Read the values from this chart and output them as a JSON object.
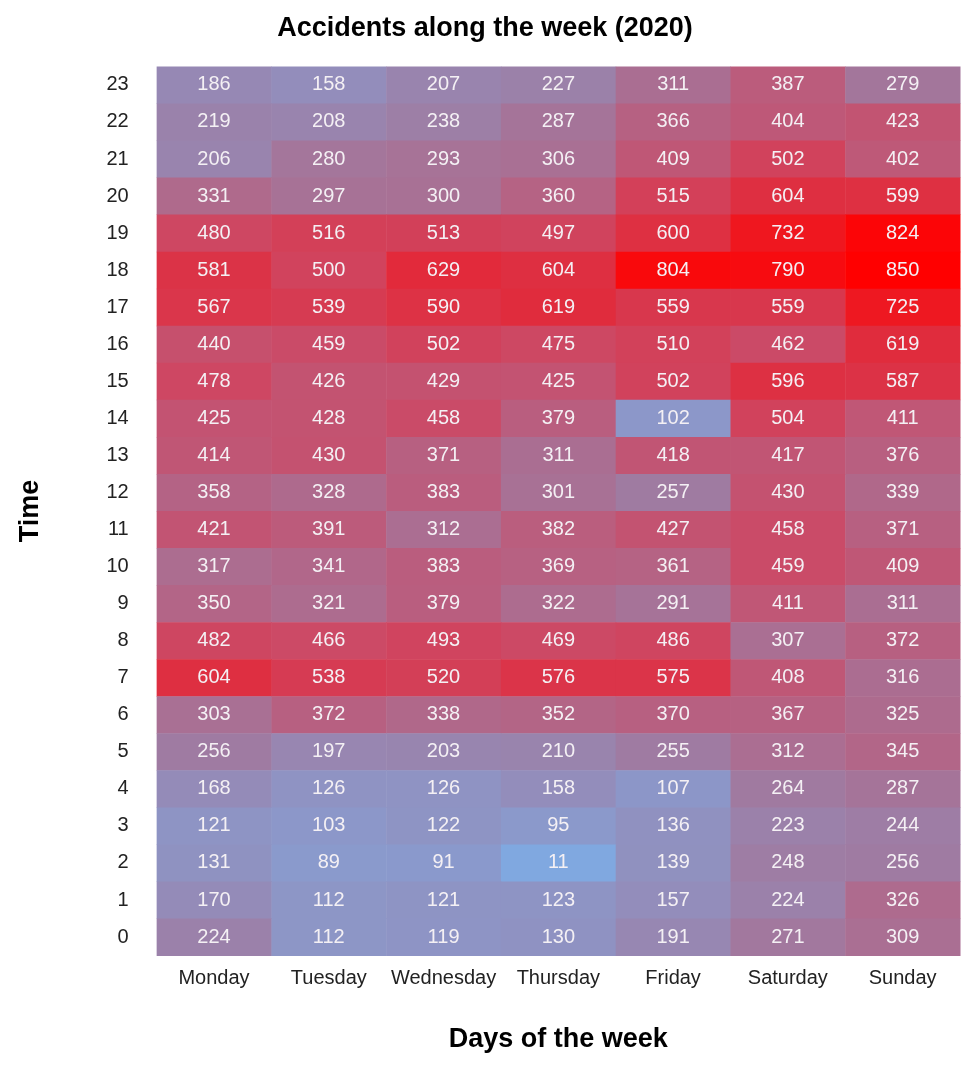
{
  "chart_data": {
    "type": "heatmap",
    "title": "Accidents along the week (2020)",
    "xlabel": "Days of the week",
    "ylabel": "Time",
    "categories": [
      "Monday",
      "Tuesday",
      "Wednesday",
      "Thursday",
      "Friday",
      "Saturday",
      "Sunday"
    ],
    "y_categories": [
      "23",
      "22",
      "21",
      "20",
      "19",
      "18",
      "17",
      "16",
      "15",
      "14",
      "13",
      "12",
      "11",
      "10",
      "9",
      "8",
      "7",
      "6",
      "5",
      "4",
      "3",
      "2",
      "1",
      "0"
    ],
    "cells": [
      [
        186,
        158,
        207,
        227,
        311,
        387,
        279
      ],
      [
        219,
        208,
        238,
        287,
        366,
        404,
        423
      ],
      [
        206,
        280,
        293,
        306,
        409,
        502,
        402
      ],
      [
        331,
        297,
        300,
        360,
        515,
        604,
        599
      ],
      [
        480,
        516,
        513,
        497,
        600,
        732,
        824
      ],
      [
        581,
        500,
        629,
        604,
        804,
        790,
        850
      ],
      [
        567,
        539,
        590,
        619,
        559,
        559,
        725
      ],
      [
        440,
        459,
        502,
        475,
        510,
        462,
        619
      ],
      [
        478,
        426,
        429,
        425,
        502,
        596,
        587
      ],
      [
        425,
        428,
        458,
        379,
        102,
        504,
        411
      ],
      [
        414,
        430,
        371,
        311,
        418,
        417,
        376
      ],
      [
        358,
        328,
        383,
        301,
        257,
        430,
        339
      ],
      [
        421,
        391,
        312,
        382,
        427,
        458,
        371
      ],
      [
        317,
        341,
        383,
        369,
        361,
        459,
        409
      ],
      [
        350,
        321,
        379,
        322,
        291,
        411,
        311
      ],
      [
        482,
        466,
        493,
        469,
        486,
        307,
        372
      ],
      [
        604,
        538,
        520,
        576,
        575,
        408,
        316
      ],
      [
        303,
        372,
        338,
        352,
        370,
        367,
        325
      ],
      [
        256,
        197,
        203,
        210,
        255,
        312,
        345
      ],
      [
        168,
        126,
        126,
        158,
        107,
        264,
        287
      ],
      [
        121,
        103,
        122,
        95,
        136,
        223,
        244
      ],
      [
        131,
        89,
        91,
        11,
        139,
        248,
        256
      ],
      [
        170,
        112,
        121,
        123,
        157,
        224,
        326
      ],
      [
        224,
        112,
        119,
        130,
        191,
        271,
        309
      ]
    ],
    "data_labels": true
  }
}
